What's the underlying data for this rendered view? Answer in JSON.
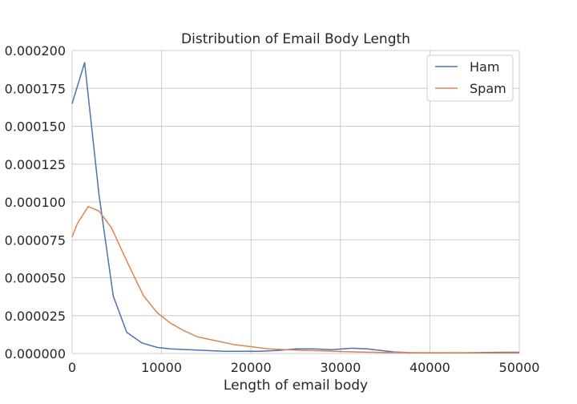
{
  "chart_data": {
    "type": "line",
    "title": "Distribution of Email Body Length",
    "xlabel": "Length of email body",
    "ylabel": "",
    "xlim": [
      0,
      50000
    ],
    "ylim": [
      0,
      0.0002
    ],
    "grid": true,
    "legend_position": "top-right",
    "x_ticks": [
      "0",
      "10000",
      "20000",
      "30000",
      "40000",
      "50000"
    ],
    "y_ticks": [
      "0.000000",
      "0.000025",
      "0.000050",
      "0.000075",
      "0.000100",
      "0.000125",
      "0.000150",
      "0.000175",
      "0.000200"
    ],
    "x_tick_values": [
      0,
      10000,
      20000,
      30000,
      40000,
      50000
    ],
    "y_tick_values": [
      0,
      2.5e-05,
      5e-05,
      7.5e-05,
      0.0001,
      0.000125,
      0.00015,
      0.000175,
      0.0002
    ],
    "series": [
      {
        "name": "Ham",
        "color": "#4c72b0",
        "x": [
          0,
          1400,
          3000,
          4600,
          6100,
          7800,
          9500,
          11000,
          13000,
          15000,
          17000,
          19000,
          21000,
          23000,
          25000,
          27000,
          29000,
          31300,
          33000,
          36000,
          38000,
          40000,
          44000,
          48000,
          50000
        ],
        "y": [
          0.000165,
          0.000192,
          0.000105,
          3.8e-05,
          1.4e-05,
          7e-06,
          4e-06,
          3e-06,
          2.5e-06,
          2e-06,
          1.5e-06,
          1.5e-06,
          1.5e-06,
          2e-06,
          3e-06,
          3e-06,
          2.5e-06,
          3.5e-06,
          3e-06,
          1e-06,
          5e-07,
          5e-07,
          5e-07,
          8e-07,
          8e-07
        ]
      },
      {
        "name": "Spam",
        "color": "#dd8452",
        "x": [
          0,
          600,
          1800,
          3000,
          4400,
          5800,
          7000,
          8000,
          9500,
          11000,
          12500,
          14000,
          16000,
          18000,
          20000,
          22000,
          24000,
          26000,
          28000,
          30000,
          32000,
          35000,
          38000,
          42000,
          46000,
          50000
        ],
        "y": [
          7.7e-05,
          8.6e-05,
          9.7e-05,
          9.4e-05,
          8.3e-05,
          6.5e-05,
          5e-05,
          3.8e-05,
          2.7e-05,
          2e-05,
          1.5e-05,
          1.1e-05,
          8.5e-06,
          6e-06,
          4.5e-06,
          3e-06,
          2.5e-06,
          2e-06,
          1.7e-06,
          1.3e-06,
          1e-06,
          7e-07,
          5e-07,
          4e-07,
          4e-07,
          4e-07
        ]
      }
    ]
  }
}
